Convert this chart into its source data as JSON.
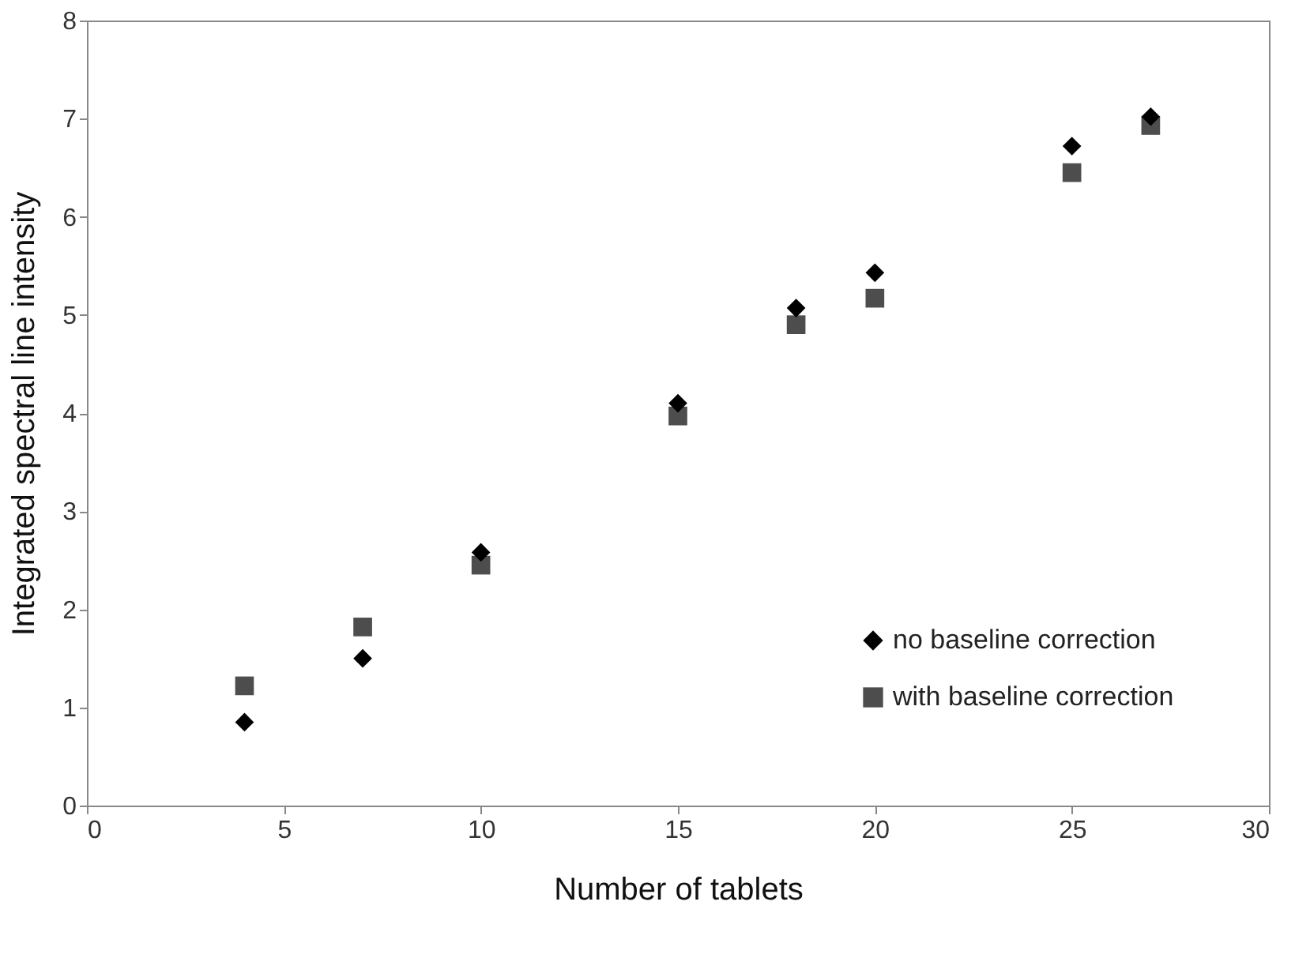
{
  "chart_data": {
    "type": "scatter",
    "xlabel": "Number of tablets",
    "ylabel": "Integrated spectral line intensity",
    "xlim": [
      0,
      30
    ],
    "ylim": [
      0,
      8
    ],
    "xticks": [
      0,
      5,
      10,
      15,
      20,
      25,
      30
    ],
    "yticks": [
      0,
      1,
      2,
      3,
      4,
      5,
      6,
      7,
      8
    ],
    "grid": false,
    "legend": "bottom right",
    "series": [
      {
        "name": "no baseline correction",
        "color": "#000000",
        "marker": "diamond",
        "x": [
          4,
          7,
          10,
          15,
          18,
          20,
          25,
          27
        ],
        "values": [
          0.85,
          1.5,
          2.58,
          4.1,
          5.07,
          5.43,
          6.72,
          7.02
        ]
      },
      {
        "name": "with baseline correction",
        "color": "#4d4d4d",
        "marker": "square",
        "x": [
          4,
          7,
          10,
          15,
          18,
          20,
          25,
          27
        ],
        "values": [
          1.22,
          1.82,
          2.45,
          3.97,
          4.9,
          5.17,
          6.45,
          6.93
        ]
      }
    ]
  }
}
